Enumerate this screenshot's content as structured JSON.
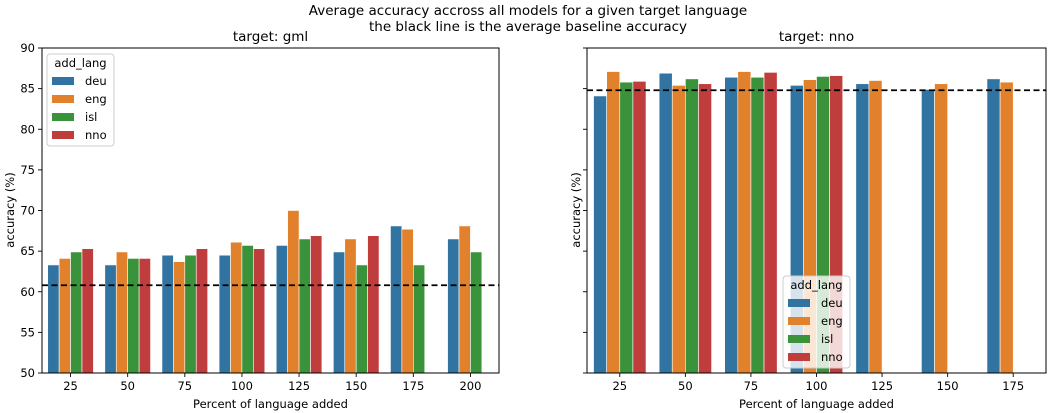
{
  "suptitle": [
    "Average accuracy accross all models for a given target language",
    "the black line is the average baseline accuracy"
  ],
  "legend_title": "add_lang",
  "colors": {
    "deu": "#3274a1",
    "eng": "#e1812c",
    "isl": "#3a923a",
    "nno": "#c03d3e",
    "baseline": "#000000"
  },
  "chart_data": [
    {
      "type": "bar",
      "title": "target: gml",
      "xlabel": "Percent of language added",
      "ylabel": "accuracy (%)",
      "ylim": [
        50,
        90
      ],
      "yticks": [
        50,
        55,
        60,
        65,
        70,
        75,
        80,
        85,
        90
      ],
      "categories": [
        "25",
        "50",
        "75",
        "100",
        "125",
        "150",
        "175",
        "200"
      ],
      "series": [
        {
          "name": "deu",
          "values": [
            63.3,
            63.3,
            64.5,
            64.5,
            65.7,
            64.9,
            68.1,
            66.5
          ]
        },
        {
          "name": "eng",
          "values": [
            64.1,
            64.9,
            63.7,
            66.1,
            70.0,
            66.5,
            67.7,
            68.1
          ]
        },
        {
          "name": "isl",
          "values": [
            64.9,
            64.1,
            64.5,
            65.7,
            66.5,
            63.3,
            63.3,
            64.9
          ]
        },
        {
          "name": "nno",
          "values": [
            65.3,
            64.1,
            65.3,
            65.3,
            66.9,
            66.9,
            null,
            null
          ]
        }
      ],
      "baseline": 60.8,
      "legend": "top-left",
      "grid": false
    },
    {
      "type": "bar",
      "title": "target: nno",
      "xlabel": "Percent of language added",
      "ylabel": "accuracy (%)",
      "ylim": [
        50,
        90
      ],
      "categories": [
        "25",
        "50",
        "75",
        "100",
        "125",
        "150",
        "175"
      ],
      "series": [
        {
          "name": "deu",
          "values": [
            84.1,
            86.9,
            86.4,
            85.4,
            85.6,
            84.9,
            86.2
          ]
        },
        {
          "name": "eng",
          "values": [
            87.1,
            85.4,
            87.1,
            86.1,
            86.0,
            85.6,
            85.8
          ]
        },
        {
          "name": "isl",
          "values": [
            85.8,
            86.2,
            86.4,
            86.5,
            null,
            null,
            null
          ]
        },
        {
          "name": "nno",
          "values": [
            85.9,
            85.6,
            87.0,
            86.6,
            null,
            null,
            null
          ]
        }
      ],
      "baseline": 84.8,
      "legend": "lower-center",
      "grid": false
    }
  ]
}
